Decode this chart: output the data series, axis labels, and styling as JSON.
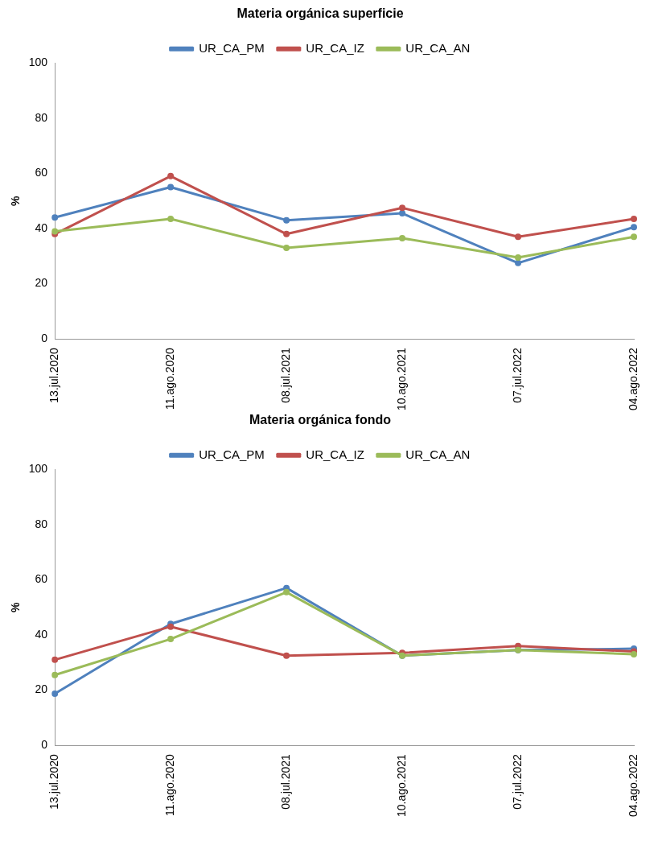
{
  "chart_data": [
    {
      "type": "line",
      "title": "Materia orgánica superficie",
      "ylabel": "%",
      "categories": [
        "13.jul.2020",
        "11.ago.2020",
        "08.jul.2021",
        "10.ago.2021",
        "07.jul.2022",
        "04.ago.2022"
      ],
      "series": [
        {
          "name": "UR_CA_PM",
          "color": "#4f81bd",
          "values": [
            44,
            55,
            43,
            45.5,
            27.5,
            40.5
          ]
        },
        {
          "name": "UR_CA_IZ",
          "color": "#c0504d",
          "values": [
            38,
            59,
            38,
            47.5,
            37,
            43.5
          ]
        },
        {
          "name": "UR_CA_AN",
          "color": "#9bbb59",
          "values": [
            39,
            43.5,
            33,
            36.5,
            29.5,
            37
          ]
        }
      ],
      "ylim": [
        0,
        100
      ],
      "yticks": [
        0,
        20,
        40,
        60,
        80,
        100
      ],
      "grid": false,
      "legend": "top",
      "marker": "circle"
    },
    {
      "type": "line",
      "title": "Materia orgánica fondo",
      "ylabel": "%",
      "categories": [
        "13.jul.2020",
        "11.ago.2020",
        "08.jul.2021",
        "10.ago.2021",
        "07.jul.2022",
        "04.ago.2022"
      ],
      "series": [
        {
          "name": "UR_CA_PM",
          "color": "#4f81bd",
          "values": [
            18.7,
            44,
            57,
            32.5,
            34.5,
            35
          ]
        },
        {
          "name": "UR_CA_IZ",
          "color": "#c0504d",
          "values": [
            31,
            43,
            32.5,
            33.5,
            36,
            34
          ]
        },
        {
          "name": "UR_CA_AN",
          "color": "#9bbb59",
          "values": [
            25.5,
            38.5,
            55.5,
            32.5,
            34.5,
            33
          ]
        }
      ],
      "ylim": [
        0,
        100
      ],
      "yticks": [
        0,
        20,
        40,
        60,
        80,
        100
      ],
      "grid": false,
      "legend": "top",
      "marker": "circle"
    }
  ]
}
